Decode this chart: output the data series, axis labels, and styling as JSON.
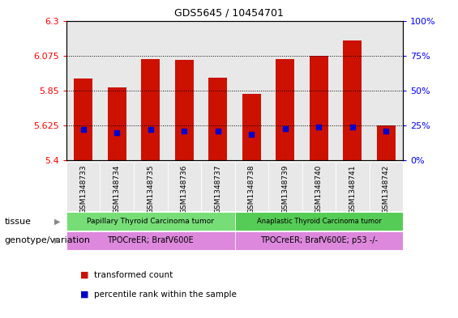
{
  "title": "GDS5645 / 10454701",
  "samples": [
    "GSM1348733",
    "GSM1348734",
    "GSM1348735",
    "GSM1348736",
    "GSM1348737",
    "GSM1348738",
    "GSM1348739",
    "GSM1348740",
    "GSM1348741",
    "GSM1348742"
  ],
  "transformed_counts": [
    5.93,
    5.87,
    6.055,
    6.05,
    5.935,
    5.83,
    6.055,
    6.075,
    6.175,
    5.625
  ],
  "percentile_ranks": [
    22,
    20,
    22,
    21,
    21,
    19,
    23,
    24,
    24,
    21
  ],
  "ylim": [
    5.4,
    6.3
  ],
  "yticks_left": [
    5.4,
    5.625,
    5.85,
    6.075,
    6.3
  ],
  "yticks_right": [
    0,
    25,
    50,
    75,
    100
  ],
  "gridlines": [
    5.625,
    5.85,
    6.075
  ],
  "bar_color": "#cc1100",
  "percentile_color": "#0000cc",
  "tissue_group1": "Papillary Thyroid Carcinoma tumor",
  "tissue_group2": "Anaplastic Thyroid Carcinoma tumor",
  "genotype_group1": "TPOCreER; BrafV600E",
  "genotype_group2": "TPOCreER; BrafV600E; p53 -/-",
  "tissue_color1": "#77dd77",
  "tissue_color2": "#55cc55",
  "genotype_color": "#dd88dd",
  "group1_count": 5,
  "group2_count": 5,
  "legend_red_label": "transformed count",
  "legend_blue_label": "percentile rank within the sample",
  "bar_width": 0.55,
  "bg_color": "#e8e8e8"
}
